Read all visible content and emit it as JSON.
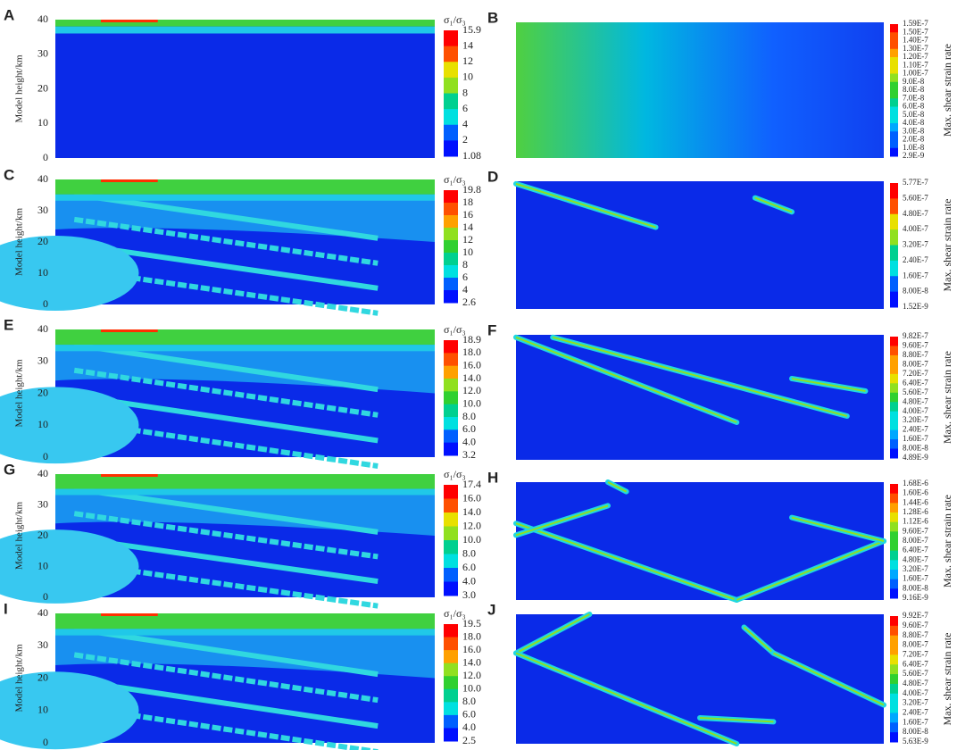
{
  "panels": [
    {
      "letter": "A",
      "y_label": "Model height/km",
      "y_ticks": [
        "40",
        "30",
        "20",
        "10",
        "0"
      ],
      "colorbar_title": "σ₁/σ₃",
      "colorbar_labels": [
        "15.9",
        "14",
        "12",
        "10",
        "8",
        "6",
        "4",
        "2",
        "1.08"
      ]
    },
    {
      "letter": "B",
      "colorbar_title": "Max. shear strain rate",
      "colorbar_labels": [
        "1.59E-7",
        "1.50E-7",
        "1.40E-7",
        "1.30E-7",
        "1.20E-7",
        "1.10E-7",
        "1.00E-7",
        "9.0E-8",
        "8.0E-8",
        "7.0E-8",
        "6.0E-8",
        "5.0E-8",
        "4.0E-8",
        "3.0E-8",
        "2.0E-8",
        "1.0E-8",
        "2.9E-9"
      ]
    },
    {
      "letter": "C",
      "y_label": "Model height/km",
      "y_ticks": [
        "40",
        "30",
        "20",
        "10",
        "0"
      ],
      "colorbar_title": "σ₁/σ₃",
      "colorbar_labels": [
        "19.8",
        "18",
        "16",
        "14",
        "12",
        "10",
        "8",
        "6",
        "4",
        "2.6"
      ]
    },
    {
      "letter": "D",
      "colorbar_title": "Max. shear strain rate",
      "colorbar_labels": [
        "5.77E-7",
        "5.60E-7",
        "4.80E-7",
        "4.00E-7",
        "3.20E-7",
        "2.40E-7",
        "1.60E-7",
        "8.00E-8",
        "1.52E-9"
      ]
    },
    {
      "letter": "E",
      "y_label": "Model height/km",
      "y_ticks": [
        "40",
        "30",
        "20",
        "10",
        "0"
      ],
      "colorbar_title": "σ₁/σ₃",
      "colorbar_labels": [
        "18.9",
        "18.0",
        "16.0",
        "14.0",
        "12.0",
        "10.0",
        "8.0",
        "6.0",
        "4.0",
        "3.2"
      ]
    },
    {
      "letter": "F",
      "colorbar_title": "Max. shear strain rate",
      "colorbar_labels": [
        "9.82E-7",
        "9.60E-7",
        "8.80E-7",
        "8.00E-7",
        "7.20E-7",
        "6.40E-7",
        "5.60E-7",
        "4.80E-7",
        "4.00E-7",
        "3.20E-7",
        "2.40E-7",
        "1.60E-7",
        "8.00E-8",
        "4.89E-9"
      ]
    },
    {
      "letter": "G",
      "y_label": "Model height/km",
      "y_ticks": [
        "40",
        "30",
        "20",
        "10",
        "0"
      ],
      "colorbar_title": "σ₁/σ₃",
      "colorbar_labels": [
        "17.4",
        "16.0",
        "14.0",
        "12.0",
        "10.0",
        "8.0",
        "6.0",
        "4.0",
        "3.0"
      ]
    },
    {
      "letter": "H",
      "colorbar_title": "Max. shear strain rate",
      "colorbar_labels": [
        "1.68E-6",
        "1.60E-6",
        "1.44E-6",
        "1.28E-6",
        "1.12E-6",
        "9.60E-7",
        "8.00E-7",
        "6.40E-7",
        "4.80E-7",
        "3.20E-7",
        "1.60E-7",
        "8.00E-8",
        "9.16E-9"
      ]
    },
    {
      "letter": "I",
      "y_label": "Model height/km",
      "y_ticks": [
        "40",
        "30",
        "20",
        "10",
        "0"
      ],
      "colorbar_title": "σ₁/σ₃",
      "colorbar_labels": [
        "19.5",
        "18.0",
        "16.0",
        "14.0",
        "12.0",
        "10.0",
        "8.0",
        "6.0",
        "4.0",
        "2.5"
      ]
    },
    {
      "letter": "J",
      "colorbar_title": "Max. shear strain rate",
      "colorbar_labels": [
        "9.92E-7",
        "9.60E-7",
        "8.80E-7",
        "8.00E-7",
        "7.20E-7",
        "6.40E-7",
        "5.60E-7",
        "4.80E-7",
        "4.00E-7",
        "3.20E-7",
        "2.40E-7",
        "1.60E-7",
        "8.00E-8",
        "5.63E-9"
      ]
    }
  ]
}
